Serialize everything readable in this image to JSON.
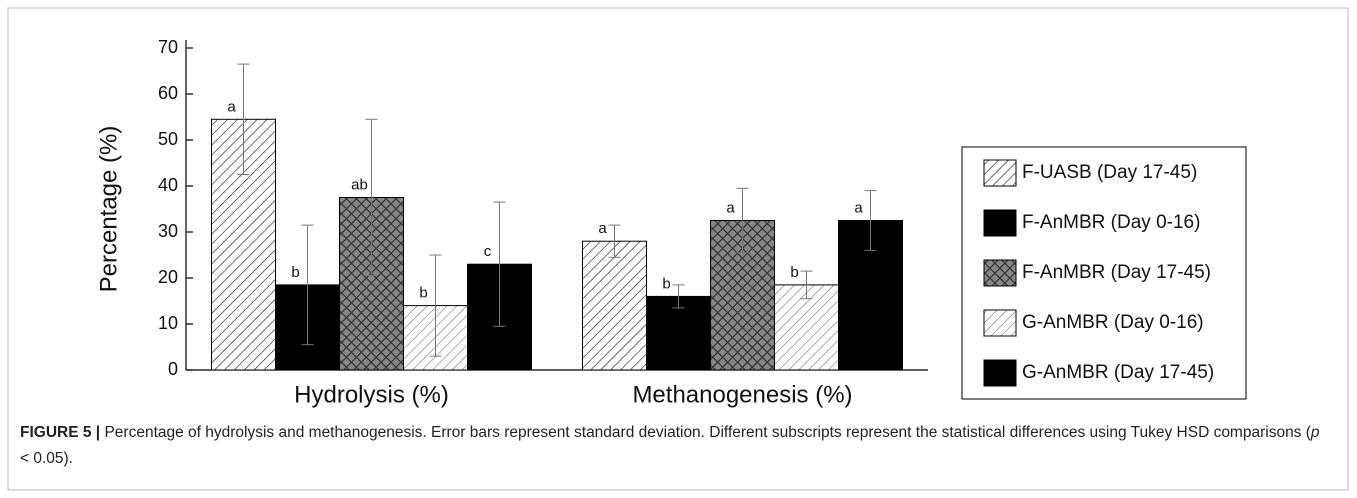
{
  "chart_data": {
    "type": "bar",
    "ylabel": "Percentage (%)",
    "categories": [
      "Hydrolysis (%)",
      "Methanogenesis (%)"
    ],
    "ylim": [
      0,
      70
    ],
    "yticks": [
      0,
      10,
      20,
      30,
      40,
      50,
      60,
      70
    ],
    "legend": "right",
    "series": [
      {
        "name": "F-UASB (Day 17-45)",
        "color": "#111111",
        "pattern": "hatch",
        "values": [
          54.5,
          28
        ],
        "errors": [
          12,
          3.5
        ],
        "letters": [
          "a",
          "a"
        ]
      },
      {
        "name": "F-AnMBR (Day 0-16)",
        "color": "#000000",
        "pattern": "solid",
        "values": [
          18.5,
          16
        ],
        "errors": [
          13,
          2.5
        ],
        "letters": [
          "b",
          "b"
        ]
      },
      {
        "name": "F-AnMBR (Day 17-45)",
        "color": "#333333",
        "pattern": "crosshatch",
        "values": [
          37.5,
          32.5
        ],
        "errors": [
          17,
          7
        ],
        "letters": [
          "ab",
          "a"
        ]
      },
      {
        "name": "G-AnMBR (Day 0-16)",
        "color": "#777777",
        "pattern": "hatch",
        "values": [
          14,
          18.5
        ],
        "errors": [
          11,
          3
        ],
        "letters": [
          "b",
          "b"
        ]
      },
      {
        "name": "G-AnMBR (Day 17-45)",
        "color": "#000000",
        "pattern": "solid",
        "values": [
          23,
          32.5
        ],
        "errors": [
          13.5,
          6.5
        ],
        "letters": [
          "c",
          "a"
        ]
      }
    ]
  },
  "caption": {
    "label": "FIGURE 5 |",
    "text": "Percentage of hydrolysis and methanogenesis. Error bars represent standard deviation. Different subscripts represent the statistical differences using Tukey HSD comparisons (",
    "variable": "p",
    "end": " < 0.05)."
  }
}
